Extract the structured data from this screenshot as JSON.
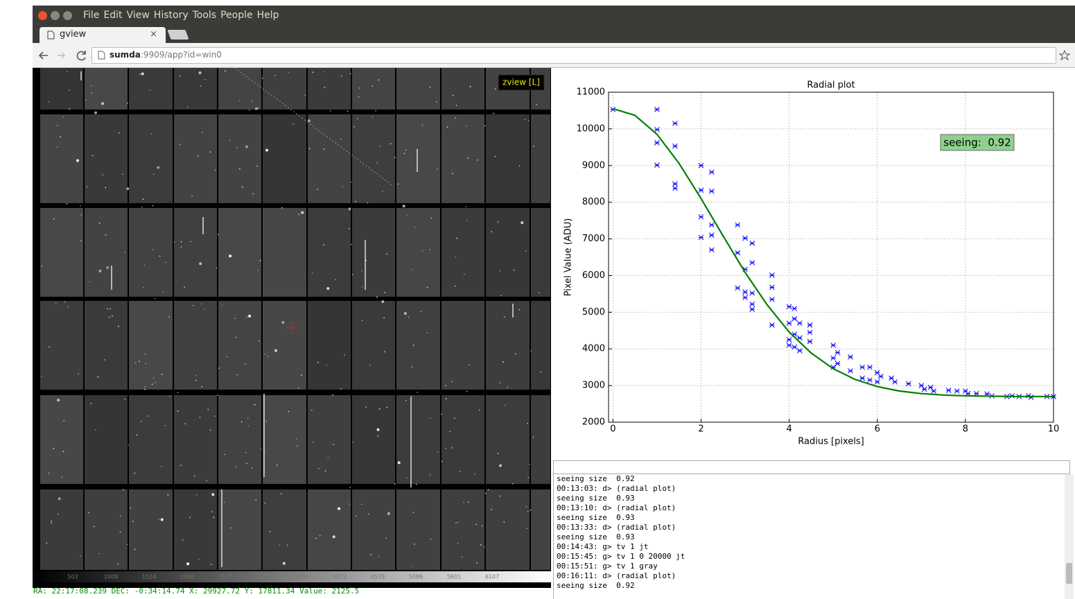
{
  "browser": {
    "menu": [
      "File",
      "Edit",
      "View",
      "History",
      "Tools",
      "People",
      "Help"
    ],
    "tab": {
      "title": "gview",
      "close": "×"
    },
    "url_host": "sumda",
    "url_path": ":9909/app?id=win0"
  },
  "viewer": {
    "label": "zview [L]",
    "colorbar_ticks": [
      "503",
      "1009",
      "1524",
      "2030",
      "2537",
      "3052",
      "3558",
      "4073",
      "4579",
      "5086",
      "5601",
      "6107"
    ],
    "status": "RA: 22:17:08.239 DEC: -0:34:14.74 X: 29927.72 Y: 17811.34 Value: 2125.5"
  },
  "chart_data": {
    "type": "scatter",
    "title": "Radial plot",
    "x_label": "Radius [pixels]",
    "y_label": "Pixel Value (ADU)",
    "annotation": "seeing:  0.92",
    "xlim": [
      -0.1,
      10
    ],
    "ylim": [
      2000,
      11000
    ],
    "xticks": [
      0,
      2,
      4,
      6,
      8,
      10
    ],
    "yticks": [
      2000,
      3000,
      4000,
      5000,
      6000,
      7000,
      8000,
      9000,
      10000,
      11000
    ],
    "grid": true,
    "series": [
      {
        "type": "scatter",
        "color": "#0000ff",
        "x": [
          0,
          1,
          1,
          1,
          1,
          1.41,
          1.41,
          1.41,
          1.41,
          2,
          2,
          2,
          2,
          2.24,
          2.24,
          2.24,
          2.24,
          2.24,
          2.83,
          2.83,
          2.83,
          3,
          3,
          3,
          3,
          3.16,
          3.16,
          3.16,
          3.16,
          3.16,
          3.61,
          3.61,
          3.61,
          3.61,
          4,
          4,
          4,
          4,
          4.12,
          4.12,
          4.12,
          4.12,
          4.24,
          4.24,
          4.24,
          4.47,
          4.47,
          4.47,
          5,
          5,
          5,
          5.1,
          5.1,
          5.39,
          5.39,
          5.66,
          5.66,
          5.83,
          5.83,
          6,
          6,
          6.08,
          6.32,
          6.4,
          6.71,
          7,
          7.07,
          7.21,
          7.28,
          7.62,
          7.81,
          8,
          8.06,
          8.25,
          8.49,
          8.6,
          8.94,
          9.06,
          9.22,
          9.43,
          9.49,
          9.85,
          10
        ],
        "values": [
          10530,
          10530,
          9980,
          9620,
          9010,
          10150,
          9530,
          8500,
          8380,
          9000,
          8330,
          7600,
          7040,
          8820,
          8300,
          7380,
          7100,
          6700,
          7380,
          6620,
          5660,
          7020,
          6170,
          5550,
          5400,
          6880,
          6350,
          5520,
          5220,
          5080,
          6010,
          5680,
          5350,
          4650,
          5150,
          4700,
          4250,
          4100,
          5100,
          4820,
          4400,
          4050,
          4700,
          4300,
          3950,
          4650,
          4450,
          4200,
          4100,
          3750,
          3500,
          3900,
          3600,
          3780,
          3400,
          3500,
          3200,
          3500,
          3150,
          3350,
          3100,
          3250,
          3200,
          3100,
          3050,
          3000,
          2900,
          2950,
          2850,
          2870,
          2850,
          2850,
          2780,
          2780,
          2770,
          2720,
          2700,
          2720,
          2700,
          2720,
          2680,
          2700,
          2700
        ]
      },
      {
        "type": "line",
        "color": "#007f00",
        "x": [
          0,
          0.5,
          1,
          1.5,
          2,
          2.5,
          3,
          3.5,
          4,
          4.5,
          5,
          5.5,
          6,
          6.5,
          7,
          7.5,
          8,
          9,
          10
        ],
        "values": [
          10550,
          10369,
          9851,
          9060,
          8100,
          7080,
          6086,
          5200,
          4460,
          3885,
          3459,
          3165,
          2972,
          2851,
          2781,
          2741,
          2720,
          2703,
          2700
        ]
      }
    ]
  },
  "console": {
    "lines": [
      "seeing size  0.92",
      "00:13:03: d> (radial plot)",
      "seeing size  0.93",
      "00:13:10: d> (radial plot)",
      "seeing size  0.93",
      "00:13:33: d> (radial plot)",
      "seeing size  0.93",
      "00:14:43: g> tv 1 jt",
      "00:15:45: g> tv 1 0 20000 jt",
      "00:15:51: g> tv 1 gray",
      "00:16:11: d> (radial plot)",
      "seeing size  0.92"
    ]
  }
}
